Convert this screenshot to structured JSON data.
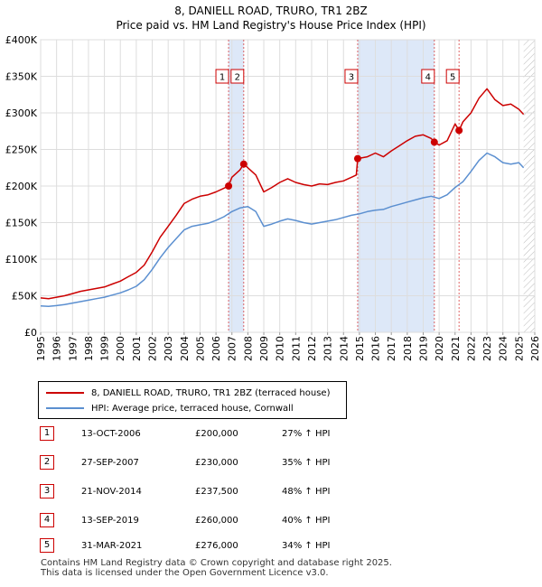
{
  "chart_data": {
    "type": "line",
    "title": "8, DANIELL ROAD, TRURO, TR1 2BZ",
    "subtitle": "Price paid vs. HM Land Registry's House Price Index (HPI)",
    "ylim": [
      0,
      400000
    ],
    "xlim": [
      1995,
      2026
    ],
    "y_ticks": [
      0,
      50000,
      100000,
      150000,
      200000,
      250000,
      300000,
      350000,
      400000
    ],
    "y_tick_labels": [
      "£0",
      "£50K",
      "£100K",
      "£150K",
      "£200K",
      "£250K",
      "£300K",
      "£350K",
      "£400K"
    ],
    "x_ticks": [
      1995,
      1996,
      1997,
      1998,
      1999,
      2000,
      2001,
      2002,
      2003,
      2004,
      2005,
      2006,
      2007,
      2008,
      2009,
      2010,
      2011,
      2012,
      2013,
      2014,
      2015,
      2016,
      2017,
      2018,
      2019,
      2020,
      2021,
      2022,
      2023,
      2024,
      2025,
      2026
    ],
    "x_tick_labels": [
      "1995",
      "1996",
      "1997",
      "1998",
      "1999",
      "2000",
      "2001",
      "2002",
      "2003",
      "2004",
      "2005",
      "2006",
      "2007",
      "2008",
      "2009",
      "2010",
      "2011",
      "2012",
      "2013",
      "2014",
      "2015",
      "2016",
      "2017",
      "2018",
      "2019",
      "2020",
      "2021",
      "2022",
      "2023",
      "2024",
      "2025",
      "2026"
    ],
    "series": [
      {
        "name": "8, DANIELL ROAD, TRURO, TR1 2BZ (terraced house)",
        "color": "#cc0000",
        "x": [
          1995.0,
          1995.5,
          1996.0,
          1996.5,
          1997.0,
          1997.5,
          1998.0,
          1998.5,
          1999.0,
          1999.5,
          2000.0,
          2000.5,
          2001.0,
          2001.5,
          2002.0,
          2002.5,
          2003.0,
          2003.5,
          2004.0,
          2004.5,
          2005.0,
          2005.5,
          2006.0,
          2006.5,
          2006.79,
          2007.0,
          2007.5,
          2007.74,
          2008.0,
          2008.5,
          2009.0,
          2009.5,
          2010.0,
          2010.5,
          2011.0,
          2011.5,
          2012.0,
          2012.5,
          2013.0,
          2013.5,
          2014.0,
          2014.5,
          2014.8,
          2014.89,
          2015.5,
          2016.0,
          2016.5,
          2017.0,
          2017.5,
          2018.0,
          2018.5,
          2019.0,
          2019.5,
          2019.7,
          2020.0,
          2020.5,
          2021.0,
          2021.25,
          2021.5,
          2022.0,
          2022.5,
          2023.0,
          2023.5,
          2024.0,
          2024.5,
          2025.0,
          2025.3
        ],
        "values": [
          47000,
          46000,
          48000,
          50000,
          53000,
          56000,
          58000,
          60000,
          62000,
          66000,
          70000,
          76000,
          82000,
          92000,
          110000,
          130000,
          145000,
          160000,
          176000,
          182000,
          186000,
          188000,
          192000,
          197000,
          200000,
          212000,
          222000,
          230000,
          225000,
          215000,
          192000,
          198000,
          205000,
          210000,
          205000,
          202000,
          200000,
          203000,
          202000,
          205000,
          207000,
          212000,
          215000,
          237500,
          240000,
          245000,
          240000,
          248000,
          255000,
          262000,
          268000,
          270000,
          265000,
          260000,
          256000,
          262000,
          285000,
          276000,
          288000,
          300000,
          320000,
          333000,
          318000,
          310000,
          312000,
          305000,
          298000
        ]
      },
      {
        "name": "HPI: Average price, terraced house, Cornwall",
        "color": "#5b8fd0",
        "x": [
          1995.0,
          1995.5,
          1996.0,
          1996.5,
          1997.0,
          1997.5,
          1998.0,
          1998.5,
          1999.0,
          1999.5,
          2000.0,
          2000.5,
          2001.0,
          2001.5,
          2002.0,
          2002.5,
          2003.0,
          2003.5,
          2004.0,
          2004.5,
          2005.0,
          2005.5,
          2006.0,
          2006.5,
          2007.0,
          2007.5,
          2008.0,
          2008.5,
          2009.0,
          2009.5,
          2010.0,
          2010.5,
          2011.0,
          2011.5,
          2012.0,
          2012.5,
          2013.0,
          2013.5,
          2014.0,
          2014.5,
          2015.0,
          2015.5,
          2016.0,
          2016.5,
          2017.0,
          2017.5,
          2018.0,
          2018.5,
          2019.0,
          2019.5,
          2020.0,
          2020.5,
          2021.0,
          2021.5,
          2022.0,
          2022.5,
          2023.0,
          2023.5,
          2024.0,
          2024.5,
          2025.0,
          2025.3
        ],
        "values": [
          36000,
          35500,
          36500,
          38000,
          40000,
          42000,
          44000,
          46000,
          48000,
          51000,
          54000,
          58000,
          63000,
          72000,
          86000,
          102000,
          116000,
          128000,
          140000,
          145000,
          147000,
          149000,
          153000,
          158000,
          165000,
          170000,
          172000,
          165000,
          145000,
          148000,
          152000,
          155000,
          153000,
          150000,
          148000,
          150000,
          152000,
          154000,
          157000,
          160000,
          162000,
          165000,
          167000,
          168000,
          172000,
          175000,
          178000,
          181000,
          184000,
          186000,
          183000,
          188000,
          198000,
          206000,
          220000,
          235000,
          245000,
          240000,
          232000,
          230000,
          232000,
          225000
        ]
      }
    ],
    "sales": [
      {
        "label": "1",
        "x": 2006.79,
        "value": 200000
      },
      {
        "label": "2",
        "x": 2007.74,
        "value": 230000
      },
      {
        "label": "3",
        "x": 2014.89,
        "value": 237500
      },
      {
        "label": "4",
        "x": 2019.7,
        "value": 260000
      },
      {
        "label": "5",
        "x": 2021.25,
        "value": 276000
      }
    ],
    "shaded_spans": [
      [
        2006.79,
        2007.74
      ],
      [
        2014.89,
        2019.7
      ]
    ],
    "hatched_from": 2025.3,
    "colors": {
      "property": "#cc0000",
      "hpi": "#5b8fd0",
      "span": "#dde8f8",
      "vline": "#cc0000",
      "grid": "#dddddd"
    }
  },
  "legend": {
    "property_label": "8, DANIELL ROAD, TRURO, TR1 2BZ (terraced house)",
    "hpi_label": "HPI: Average price, terraced house, Cornwall"
  },
  "sales_table": [
    {
      "num": "1",
      "date": "13-OCT-2006",
      "price": "£200,000",
      "hpi": "27% ↑ HPI"
    },
    {
      "num": "2",
      "date": "27-SEP-2007",
      "price": "£230,000",
      "hpi": "35% ↑ HPI"
    },
    {
      "num": "3",
      "date": "21-NOV-2014",
      "price": "£237,500",
      "hpi": "48% ↑ HPI"
    },
    {
      "num": "4",
      "date": "13-SEP-2019",
      "price": "£260,000",
      "hpi": "40% ↑ HPI"
    },
    {
      "num": "5",
      "date": "31-MAR-2021",
      "price": "£276,000",
      "hpi": "34% ↑ HPI"
    }
  ],
  "footer": {
    "line1": "Contains HM Land Registry data © Crown copyright and database right 2025.",
    "line2": "This data is licensed under the Open Government Licence v3.0."
  }
}
